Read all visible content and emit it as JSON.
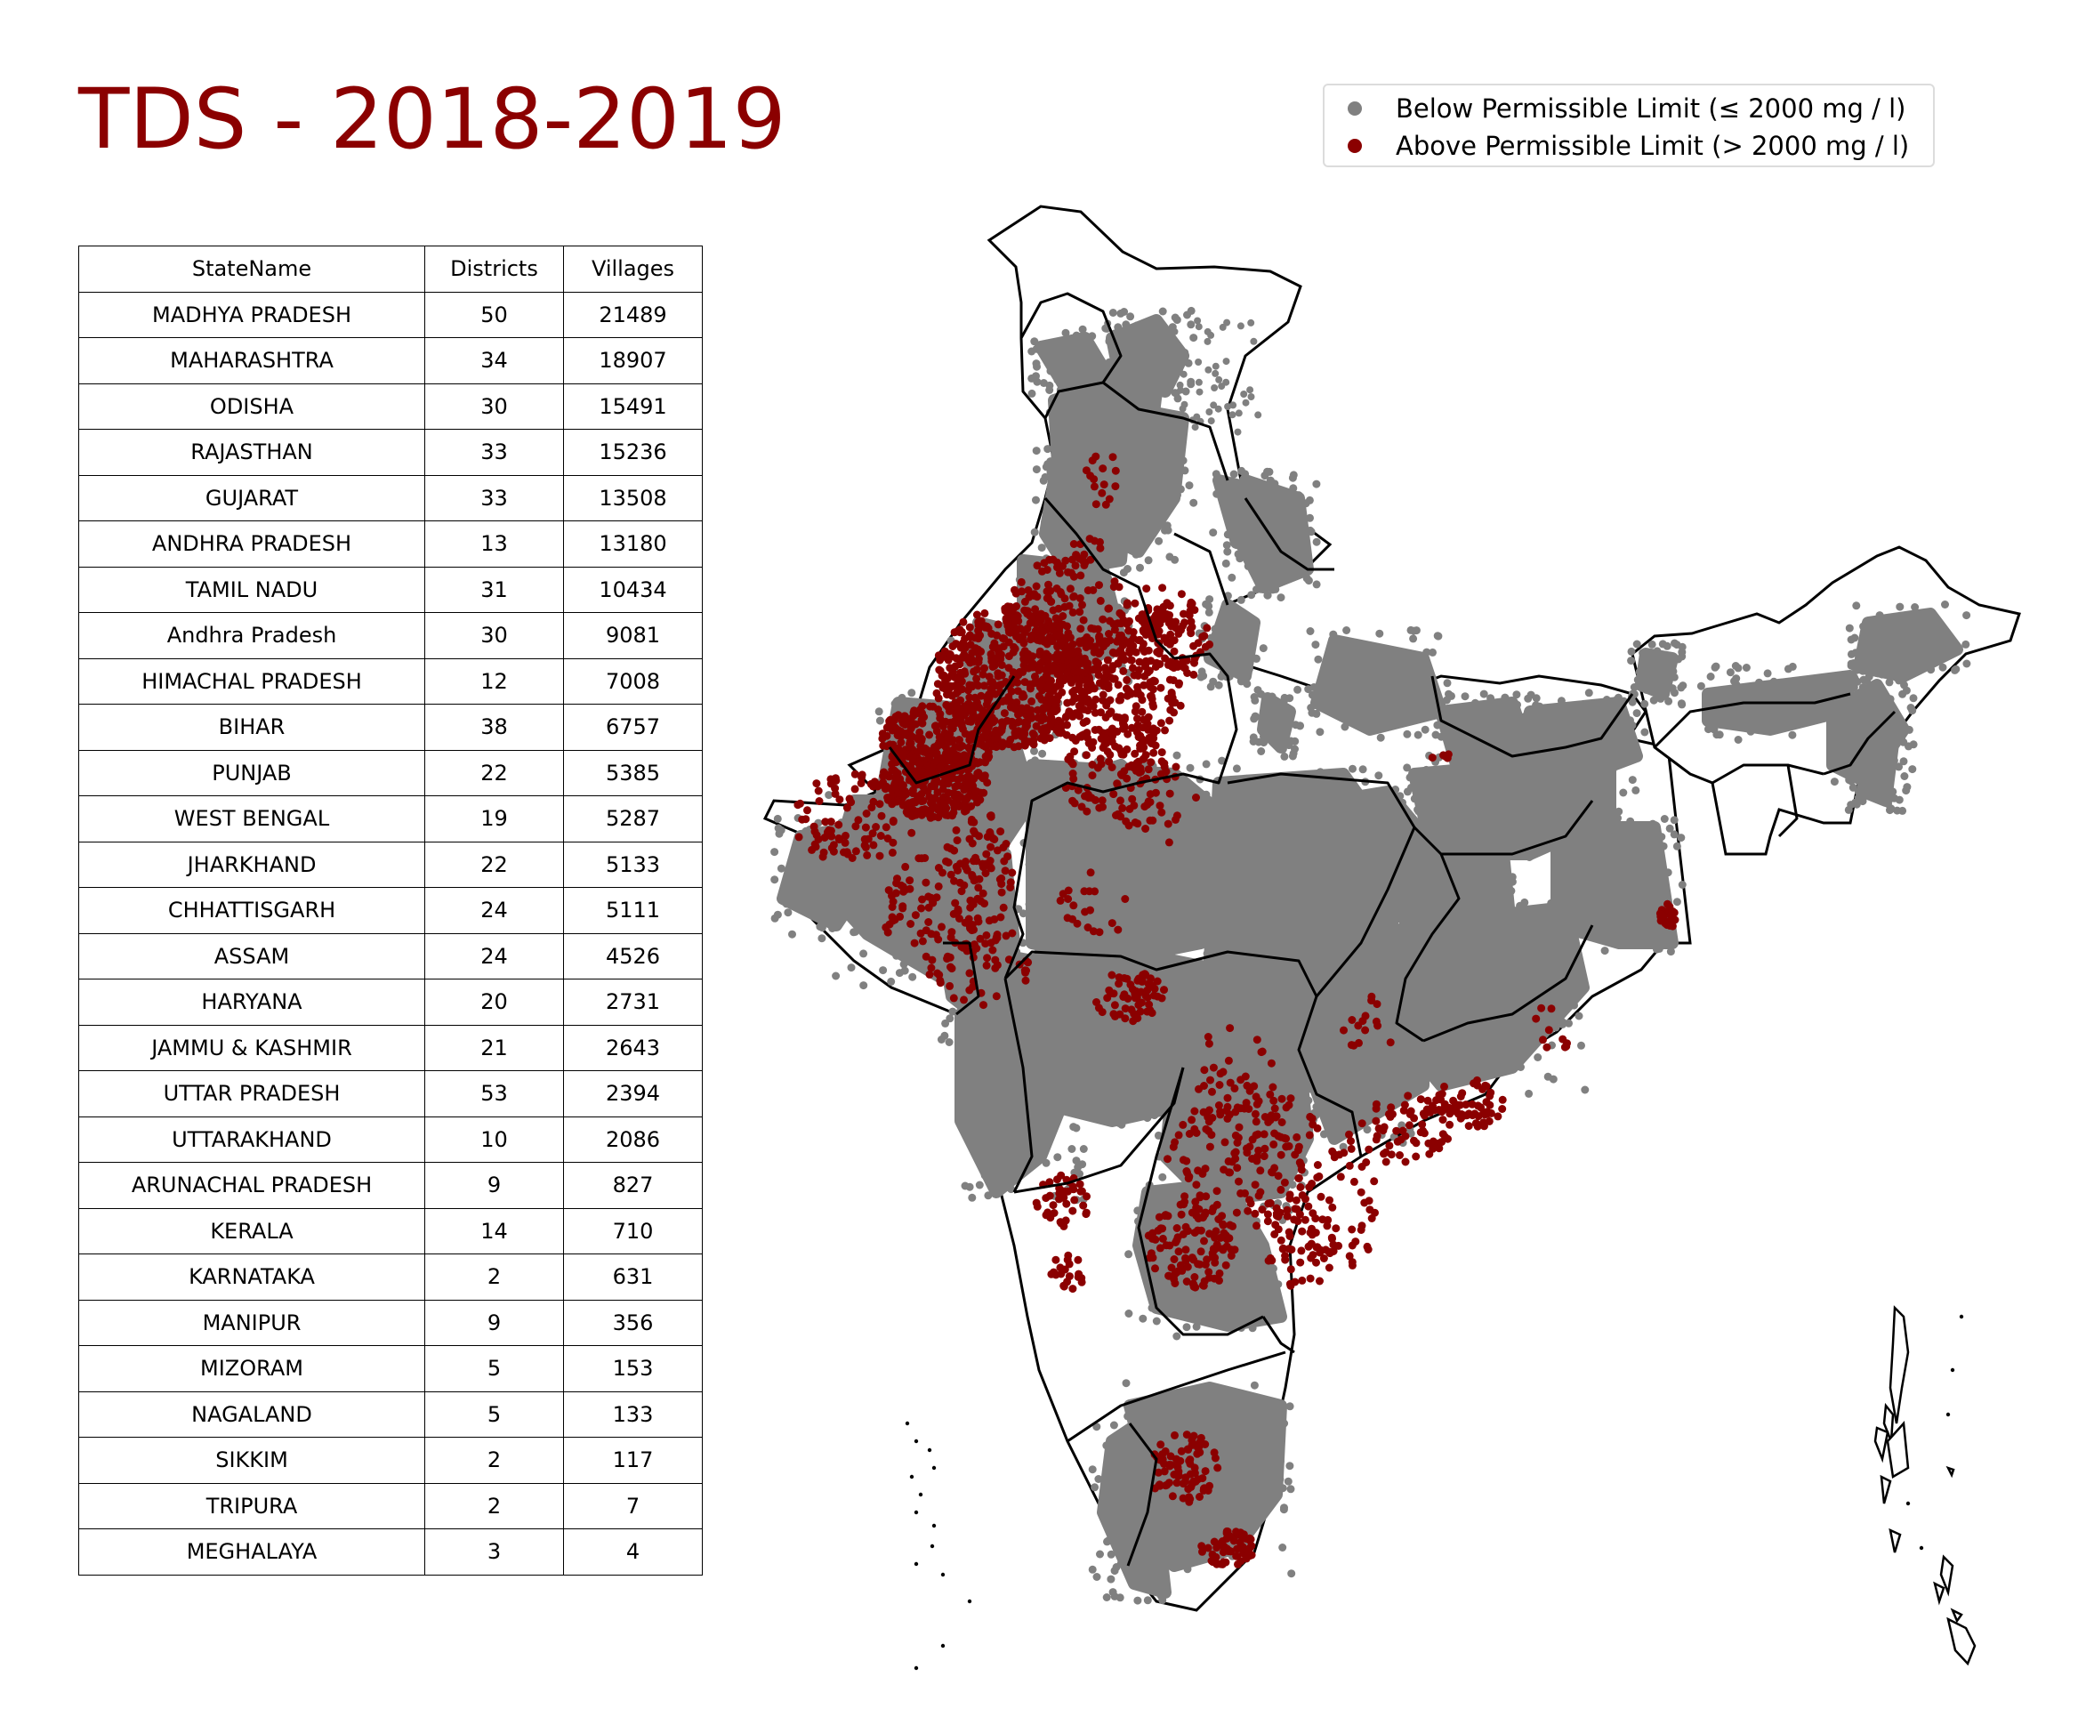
{
  "title": "TDS - 2018-2019",
  "legend": {
    "items": [
      {
        "label": "Below Permissible Limit (≤ 2000 mg / l)",
        "color": "#808080"
      },
      {
        "label": "Above Permissible Limit (> 2000 mg / l)",
        "color": "#8b0000"
      }
    ]
  },
  "table": {
    "headers": [
      "StateName",
      "Districts",
      "Villages"
    ],
    "rows": [
      [
        "MADHYA PRADESH",
        "50",
        "21489"
      ],
      [
        "MAHARASHTRA",
        "34",
        "18907"
      ],
      [
        "ODISHA",
        "30",
        "15491"
      ],
      [
        "RAJASTHAN",
        "33",
        "15236"
      ],
      [
        "GUJARAT",
        "33",
        "13508"
      ],
      [
        "ANDHRA PRADESH",
        "13",
        "13180"
      ],
      [
        "TAMIL NADU",
        "31",
        "10434"
      ],
      [
        "Andhra Pradesh",
        "30",
        "9081"
      ],
      [
        "HIMACHAL PRADESH",
        "12",
        "7008"
      ],
      [
        "BIHAR",
        "38",
        "6757"
      ],
      [
        "PUNJAB",
        "22",
        "5385"
      ],
      [
        "WEST BENGAL",
        "19",
        "5287"
      ],
      [
        "JHARKHAND",
        "22",
        "5133"
      ],
      [
        "CHHATTISGARH",
        "24",
        "5111"
      ],
      [
        "ASSAM",
        "24",
        "4526"
      ],
      [
        "HARYANA",
        "20",
        "2731"
      ],
      [
        "JAMMU & KASHMIR",
        "21",
        "2643"
      ],
      [
        "UTTAR PRADESH",
        "53",
        "2394"
      ],
      [
        "UTTARAKHAND",
        "10",
        "2086"
      ],
      [
        "ARUNACHAL PRADESH",
        "9",
        "827"
      ],
      [
        "KERALA",
        "14",
        "710"
      ],
      [
        "KARNATAKA",
        "2",
        "631"
      ],
      [
        "MANIPUR",
        "9",
        "356"
      ],
      [
        "MIZORAM",
        "5",
        "153"
      ],
      [
        "NAGALAND",
        "5",
        "133"
      ],
      [
        "SIKKIM",
        "2",
        "117"
      ],
      [
        "TRIPURA",
        "2",
        "7"
      ],
      [
        "MEGHALAYA",
        "3",
        "4"
      ]
    ]
  },
  "map": {
    "country_fill": "#ffffff",
    "border_color": "#000000",
    "below_color": "#808080",
    "above_color": "#8b0000"
  }
}
